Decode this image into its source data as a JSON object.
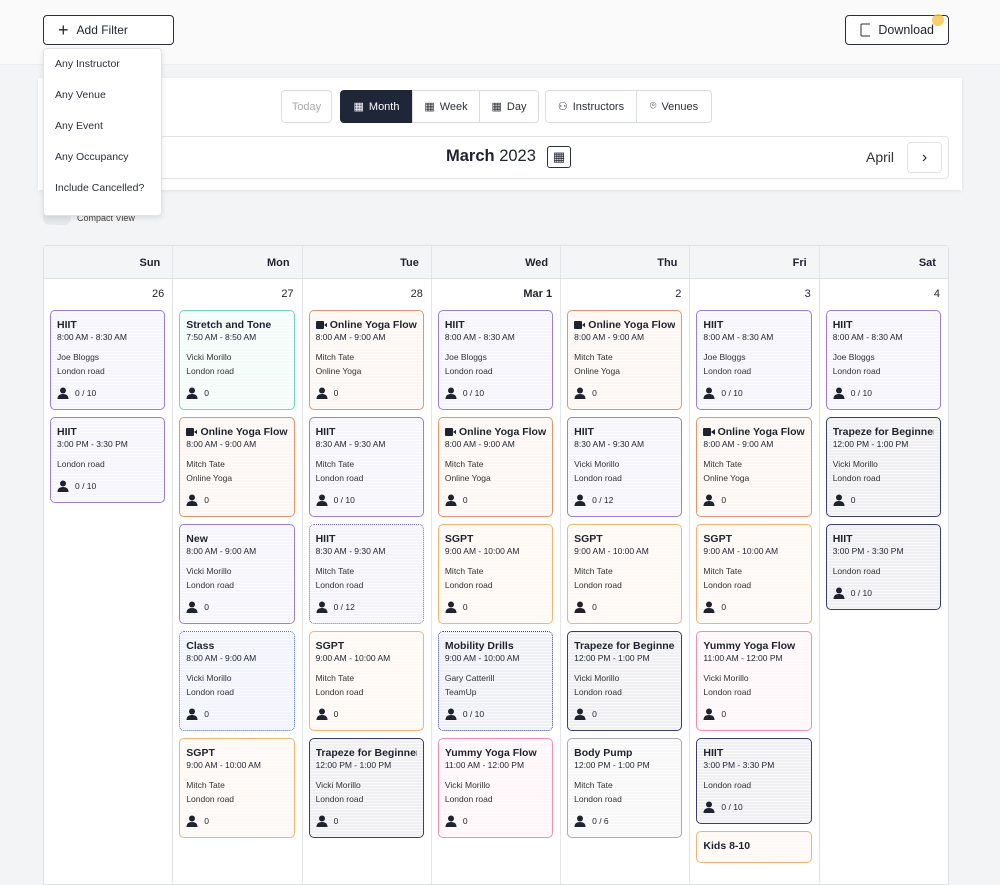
{
  "toolbar": {
    "add_filter": "Add Filter",
    "download": "Download"
  },
  "filter_menu": {
    "items": [
      "Any Instructor",
      "Any Venue",
      "Any Event",
      "Any Occupancy",
      "Include Cancelled?"
    ]
  },
  "views": {
    "today": "Today",
    "month": "Month",
    "week": "Week",
    "day": "Day",
    "instructors": "Instructors",
    "venues": "Venues"
  },
  "header": {
    "month": "March",
    "year": "2023",
    "next": "April"
  },
  "compact_view": "Compact View",
  "calendar": {
    "days": [
      "Sun",
      "Mon",
      "Tue",
      "Wed",
      "Thu",
      "Fri",
      "Sat"
    ],
    "columns": [
      {
        "date": "26",
        "events": [
          {
            "title": "HIIT",
            "time": "8:00 AM - 8:30 AM",
            "instructor": "Joe Bloggs",
            "venue": "London road",
            "occupancy": "0 / 10",
            "color": "#9b7fd4"
          },
          {
            "title": "HIIT",
            "time": "3:00 PM - 3:30 PM",
            "venue": "London road",
            "occupancy": "0 / 10",
            "color": "#9b7fd4"
          }
        ]
      },
      {
        "date": "27",
        "events": [
          {
            "title": "Stretch and Tone",
            "time": "7:50 AM - 8:50 AM",
            "instructor": "Vicki Morillo",
            "venue": "London road",
            "occupancy": "0",
            "color": "#6fd6c3"
          },
          {
            "title": "Online Yoga Flow",
            "time": "8:00 AM - 9:00 AM",
            "instructor": "Mitch Tate",
            "venue": "Online Yoga",
            "occupancy": "0",
            "color": "#e4956b",
            "online": true
          },
          {
            "title": "New",
            "time": "8:00 AM - 9:00 AM",
            "instructor": "Vicki Morillo",
            "venue": "London road",
            "occupancy": "0",
            "color": "#9b7fd4"
          },
          {
            "title": "Class",
            "time": "8:00 AM - 9:00 AM",
            "instructor": "Vicki Morillo",
            "venue": "London road",
            "occupancy": "0",
            "color": "#4a6fd8",
            "border": "dotted"
          },
          {
            "title": "SGPT",
            "time": "9:00 AM - 10:00 AM",
            "instructor": "Mitch Tate",
            "venue": "London road",
            "occupancy": "0",
            "color": "#f0b56e"
          }
        ]
      },
      {
        "date": "28",
        "events": [
          {
            "title": "Online Yoga Flow",
            "time": "8:00 AM - 9:00 AM",
            "instructor": "Mitch Tate",
            "venue": "Online Yoga",
            "occupancy": "0",
            "color": "#e4956b",
            "online": true
          },
          {
            "title": "HIIT",
            "time": "8:30 AM - 9:30 AM",
            "instructor": "Mitch Tate",
            "venue": "London road",
            "occupancy": "0 / 10",
            "color": "#9b7fd4"
          },
          {
            "title": "HIIT",
            "time": "8:30 AM - 9:30 AM",
            "instructor": "Mitch Tate",
            "venue": "London road",
            "occupancy": "0 / 12",
            "color": "#7a6fc4",
            "border": "dotted"
          },
          {
            "title": "SGPT",
            "time": "9:00 AM - 10:00 AM",
            "instructor": "Mitch Tate",
            "venue": "London road",
            "occupancy": "0",
            "color": "#f0b56e"
          },
          {
            "title": "Trapeze for Beginners",
            "time": "12:00 PM - 1:00 PM",
            "instructor": "Vicki Morillo",
            "venue": "London road",
            "occupancy": "0",
            "color": "#3b3f6b"
          }
        ]
      },
      {
        "date": "Mar 1",
        "events": [
          {
            "title": "HIIT",
            "time": "8:00 AM - 8:30 AM",
            "instructor": "Joe Bloggs",
            "venue": "London road",
            "occupancy": "0 / 10",
            "color": "#9b7fd4"
          },
          {
            "title": "Online Yoga Flow",
            "time": "8:00 AM - 9:00 AM",
            "instructor": "Mitch Tate",
            "venue": "Online Yoga",
            "occupancy": "0",
            "color": "#e4956b",
            "online": true
          },
          {
            "title": "SGPT",
            "time": "9:00 AM - 10:00 AM",
            "instructor": "Mitch Tate",
            "venue": "London road",
            "occupancy": "0",
            "color": "#f0b56e"
          },
          {
            "title": "Mobility Drills",
            "time": "9:00 AM - 10:00 AM",
            "instructor": "Gary Catterill",
            "venue": "TeamUp",
            "occupancy": "0 / 10",
            "color": "#3b3f9b",
            "border": "dotted"
          },
          {
            "title": "Yummy Yoga Flow",
            "time": "11:00 AM - 12:00 PM",
            "instructor": "Vicki Morillo",
            "venue": "London road",
            "occupancy": "0",
            "color": "#f08fb0"
          }
        ]
      },
      {
        "date": "2",
        "events": [
          {
            "title": "Online Yoga Flow",
            "time": "8:00 AM - 9:00 AM",
            "instructor": "Mitch Tate",
            "venue": "Online Yoga",
            "occupancy": "0",
            "color": "#e4956b",
            "online": true
          },
          {
            "title": "HIIT",
            "time": "8:30 AM - 9:30 AM",
            "instructor": "Vicki Morillo",
            "venue": "London road",
            "occupancy": "0 / 12",
            "color": "#9b7fd4"
          },
          {
            "title": "SGPT",
            "time": "9:00 AM - 10:00 AM",
            "instructor": "Mitch Tate",
            "venue": "London road",
            "occupancy": "0",
            "color": "#f0b56e"
          },
          {
            "title": "Trapeze for Beginners",
            "time": "12:00 PM - 1:00 PM",
            "instructor": "Vicki Morillo",
            "venue": "London road",
            "occupancy": "0",
            "color": "#3b3f6b"
          },
          {
            "title": "Body Pump",
            "time": "12:00 PM - 1:00 PM",
            "instructor": "Mitch Tate",
            "venue": "London road",
            "occupancy": "0 / 6",
            "color": "#a8abb2"
          }
        ]
      },
      {
        "date": "3",
        "events": [
          {
            "title": "HIIT",
            "time": "8:00 AM - 8:30 AM",
            "instructor": "Joe Bloggs",
            "venue": "London road",
            "occupancy": "0 / 10",
            "color": "#9b7fd4"
          },
          {
            "title": "Online Yoga Flow",
            "time": "8:00 AM - 9:00 AM",
            "instructor": "Mitch Tate",
            "venue": "Online Yoga",
            "occupancy": "0",
            "color": "#e4956b",
            "online": true
          },
          {
            "title": "SGPT",
            "time": "9:00 AM - 10:00 AM",
            "instructor": "Mitch Tate",
            "venue": "London road",
            "occupancy": "0",
            "color": "#f0b56e"
          },
          {
            "title": "Yummy Yoga Flow",
            "time": "11:00 AM - 12:00 PM",
            "instructor": "Vicki Morillo",
            "venue": "London road",
            "occupancy": "0",
            "color": "#f08fb0"
          },
          {
            "title": "HIIT",
            "time": "3:00 PM - 3:30 PM",
            "venue": "London road",
            "occupancy": "0 / 10",
            "color": "#3b3f6b"
          },
          {
            "title": "Kids 8-10",
            "color": "#f0b56e"
          }
        ]
      },
      {
        "date": "4",
        "events": [
          {
            "title": "HIIT",
            "time": "8:00 AM - 8:30 AM",
            "instructor": "Joe Bloggs",
            "venue": "London road",
            "occupancy": "0 / 10",
            "color": "#9b7fd4"
          },
          {
            "title": "Trapeze for Beginners",
            "time": "12:00 PM - 1:00 PM",
            "instructor": "Vicki Morillo",
            "venue": "London road",
            "occupancy": "0",
            "color": "#3b3f6b"
          },
          {
            "title": "HIIT",
            "time": "3:00 PM - 3:30 PM",
            "venue": "London road",
            "occupancy": "0 / 10",
            "color": "#3b3f6b"
          }
        ]
      }
    ]
  }
}
